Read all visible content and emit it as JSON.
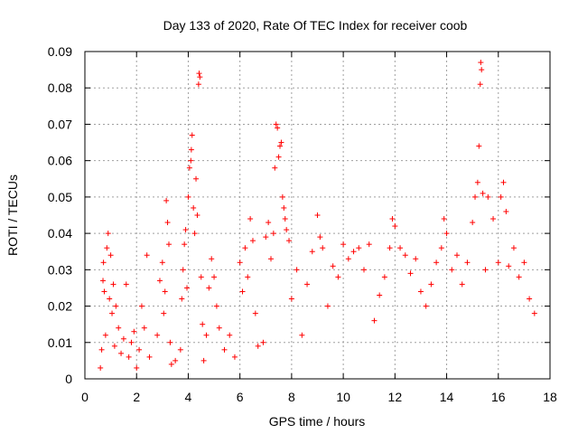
{
  "chart_data": {
    "type": "scatter",
    "title": "Day 133 of 2020, Rate Of TEC Index for receiver coob",
    "xlabel": "GPS time / hours",
    "ylabel": "ROTI / TECUs",
    "xlim": [
      0,
      18
    ],
    "ylim": [
      0,
      0.09
    ],
    "xticks": [
      "0",
      "2",
      "4",
      "6",
      "8",
      "10",
      "12",
      "14",
      "16",
      "18"
    ],
    "yticks": [
      "0",
      "0.01",
      "0.02",
      "0.03",
      "0.04",
      "0.05",
      "0.06",
      "0.07",
      "0.08",
      "0.09"
    ],
    "grid": true,
    "marker": "plus",
    "marker_color": "#ff0000",
    "points": [
      [
        0.6,
        0.003
      ],
      [
        0.65,
        0.008
      ],
      [
        0.7,
        0.027
      ],
      [
        0.72,
        0.032
      ],
      [
        0.75,
        0.024
      ],
      [
        0.8,
        0.012
      ],
      [
        0.85,
        0.036
      ],
      [
        0.9,
        0.04
      ],
      [
        0.95,
        0.022
      ],
      [
        1.0,
        0.034
      ],
      [
        1.05,
        0.018
      ],
      [
        1.1,
        0.026
      ],
      [
        1.15,
        0.009
      ],
      [
        1.2,
        0.02
      ],
      [
        1.3,
        0.014
      ],
      [
        1.4,
        0.007
      ],
      [
        1.5,
        0.011
      ],
      [
        1.6,
        0.026
      ],
      [
        1.7,
        0.006
      ],
      [
        1.8,
        0.01
      ],
      [
        1.9,
        0.013
      ],
      [
        2.0,
        0.003
      ],
      [
        2.1,
        0.008
      ],
      [
        2.2,
        0.02
      ],
      [
        2.3,
        0.014
      ],
      [
        2.4,
        0.034
      ],
      [
        2.5,
        0.006
      ],
      [
        2.8,
        0.012
      ],
      [
        2.9,
        0.027
      ],
      [
        3.0,
        0.032
      ],
      [
        3.05,
        0.018
      ],
      [
        3.1,
        0.024
      ],
      [
        3.15,
        0.049
      ],
      [
        3.2,
        0.043
      ],
      [
        3.25,
        0.037
      ],
      [
        3.3,
        0.01
      ],
      [
        3.35,
        0.004
      ],
      [
        3.5,
        0.005
      ],
      [
        3.7,
        0.008
      ],
      [
        3.75,
        0.022
      ],
      [
        3.8,
        0.03
      ],
      [
        3.85,
        0.037
      ],
      [
        3.9,
        0.041
      ],
      [
        3.95,
        0.025
      ],
      [
        4.0,
        0.05
      ],
      [
        4.05,
        0.058
      ],
      [
        4.1,
        0.06
      ],
      [
        4.12,
        0.063
      ],
      [
        4.15,
        0.067
      ],
      [
        4.2,
        0.047
      ],
      [
        4.25,
        0.04
      ],
      [
        4.3,
        0.055
      ],
      [
        4.35,
        0.045
      ],
      [
        4.4,
        0.081
      ],
      [
        4.42,
        0.084
      ],
      [
        4.45,
        0.083
      ],
      [
        4.5,
        0.028
      ],
      [
        4.55,
        0.015
      ],
      [
        4.6,
        0.005
      ],
      [
        4.7,
        0.012
      ],
      [
        4.8,
        0.025
      ],
      [
        4.9,
        0.033
      ],
      [
        5.0,
        0.028
      ],
      [
        5.1,
        0.02
      ],
      [
        5.2,
        0.014
      ],
      [
        5.4,
        0.008
      ],
      [
        5.6,
        0.012
      ],
      [
        5.8,
        0.006
      ],
      [
        6.0,
        0.032
      ],
      [
        6.1,
        0.024
      ],
      [
        6.2,
        0.036
      ],
      [
        6.3,
        0.028
      ],
      [
        6.4,
        0.044
      ],
      [
        6.5,
        0.038
      ],
      [
        6.6,
        0.018
      ],
      [
        6.7,
        0.009
      ],
      [
        6.9,
        0.01
      ],
      [
        7.0,
        0.039
      ],
      [
        7.1,
        0.043
      ],
      [
        7.2,
        0.033
      ],
      [
        7.3,
        0.04
      ],
      [
        7.35,
        0.058
      ],
      [
        7.4,
        0.07
      ],
      [
        7.45,
        0.069
      ],
      [
        7.5,
        0.061
      ],
      [
        7.55,
        0.064
      ],
      [
        7.6,
        0.065
      ],
      [
        7.65,
        0.05
      ],
      [
        7.7,
        0.047
      ],
      [
        7.75,
        0.044
      ],
      [
        7.8,
        0.041
      ],
      [
        7.9,
        0.038
      ],
      [
        8.0,
        0.022
      ],
      [
        8.2,
        0.03
      ],
      [
        8.4,
        0.012
      ],
      [
        8.6,
        0.026
      ],
      [
        8.8,
        0.035
      ],
      [
        9.0,
        0.045
      ],
      [
        9.1,
        0.039
      ],
      [
        9.2,
        0.036
      ],
      [
        9.4,
        0.02
      ],
      [
        9.6,
        0.031
      ],
      [
        9.8,
        0.028
      ],
      [
        10.0,
        0.037
      ],
      [
        10.2,
        0.033
      ],
      [
        10.4,
        0.035
      ],
      [
        10.6,
        0.036
      ],
      [
        10.8,
        0.03
      ],
      [
        11.0,
        0.037
      ],
      [
        11.2,
        0.016
      ],
      [
        11.4,
        0.023
      ],
      [
        11.6,
        0.028
      ],
      [
        11.8,
        0.036
      ],
      [
        11.9,
        0.044
      ],
      [
        12.0,
        0.042
      ],
      [
        12.2,
        0.036
      ],
      [
        12.4,
        0.034
      ],
      [
        12.6,
        0.029
      ],
      [
        12.8,
        0.033
      ],
      [
        13.0,
        0.024
      ],
      [
        13.2,
        0.02
      ],
      [
        13.4,
        0.026
      ],
      [
        13.6,
        0.032
      ],
      [
        13.8,
        0.036
      ],
      [
        13.9,
        0.044
      ],
      [
        14.0,
        0.04
      ],
      [
        14.2,
        0.03
      ],
      [
        14.4,
        0.034
      ],
      [
        14.6,
        0.026
      ],
      [
        14.8,
        0.032
      ],
      [
        15.0,
        0.043
      ],
      [
        15.1,
        0.05
      ],
      [
        15.2,
        0.054
      ],
      [
        15.25,
        0.064
      ],
      [
        15.3,
        0.081
      ],
      [
        15.32,
        0.087
      ],
      [
        15.35,
        0.085
      ],
      [
        15.4,
        0.051
      ],
      [
        15.5,
        0.03
      ],
      [
        15.6,
        0.05
      ],
      [
        15.8,
        0.044
      ],
      [
        16.0,
        0.032
      ],
      [
        16.1,
        0.05
      ],
      [
        16.2,
        0.054
      ],
      [
        16.3,
        0.046
      ],
      [
        16.4,
        0.031
      ],
      [
        16.6,
        0.036
      ],
      [
        16.8,
        0.028
      ],
      [
        17.0,
        0.032
      ],
      [
        17.2,
        0.022
      ],
      [
        17.4,
        0.018
      ]
    ]
  }
}
